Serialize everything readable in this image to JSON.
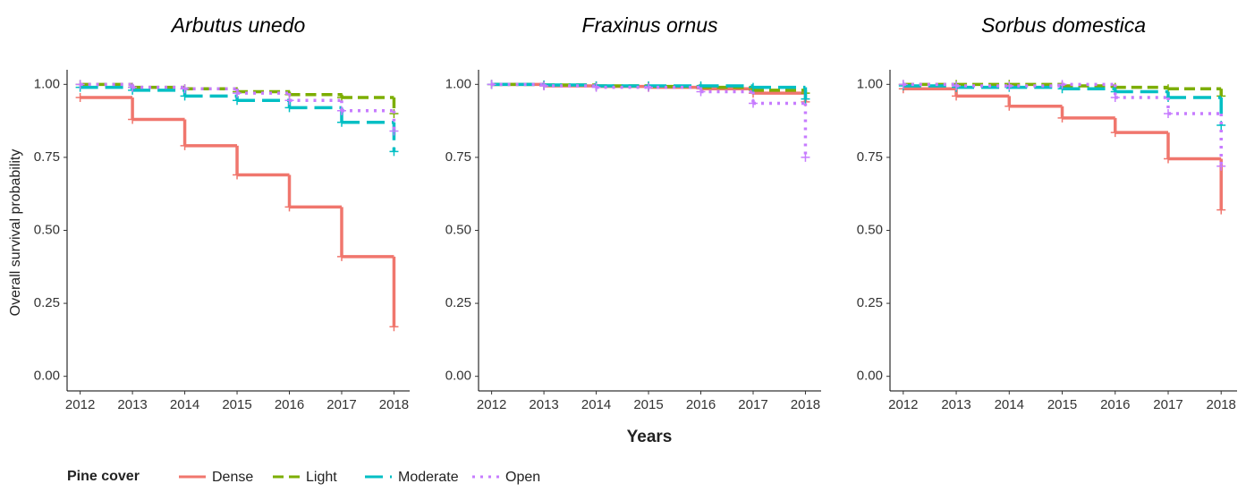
{
  "chart_data": [
    {
      "type": "step",
      "title": "Arbutus unedo",
      "ylabel": "Overall survival probability",
      "legend_title": "Pine cover",
      "x": [
        2012,
        2013,
        2014,
        2015,
        2016,
        2017,
        2018
      ],
      "xlim": [
        2011.75,
        2018.3
      ],
      "xticks": [
        2012,
        2013,
        2014,
        2015,
        2016,
        2017,
        2018
      ],
      "ylim": [
        -0.05,
        1.05
      ],
      "yticks": [
        {
          "value": 0,
          "label": "0.00"
        },
        0.25,
        {
          "value": 0.5,
          "label": "0.50"
        },
        0.75,
        {
          "value": 1,
          "label": "1.00"
        }
      ],
      "series": [
        {
          "name": "Dense",
          "color": "#f0766d",
          "linestyle": "solid",
          "values": [
            0.955,
            0.88,
            0.79,
            0.69,
            0.58,
            0.41,
            0.17
          ]
        },
        {
          "name": "Light",
          "color": "#7cae00",
          "linestyle": "dashed",
          "values": [
            1.0,
            0.99,
            0.985,
            0.975,
            0.965,
            0.955,
            0.9
          ]
        },
        {
          "name": "Moderate",
          "color": "#00bfc4",
          "linestyle": "longdash",
          "values": [
            0.99,
            0.98,
            0.96,
            0.945,
            0.92,
            0.87,
            0.77
          ]
        },
        {
          "name": "Open",
          "color": "#c77cff",
          "linestyle": "dotted",
          "values": [
            1.0,
            0.99,
            0.985,
            0.97,
            0.945,
            0.91,
            0.84
          ]
        }
      ]
    },
    {
      "type": "step",
      "title": "Fraxinus ornus",
      "xlabel": "Years",
      "x": [
        2012,
        2013,
        2014,
        2015,
        2016,
        2017,
        2018
      ],
      "xlim": [
        2011.75,
        2018.3
      ],
      "xticks": [
        2012,
        2013,
        2014,
        2015,
        2016,
        2017,
        2018
      ],
      "ylim": [
        -0.05,
        1.05
      ],
      "yticks": [
        {
          "value": 0,
          "label": "0.00"
        },
        0.25,
        {
          "value": 0.5,
          "label": "0.50"
        },
        0.75,
        {
          "value": 1,
          "label": "1.00"
        }
      ],
      "series": [
        {
          "name": "Dense",
          "color": "#f0766d",
          "linestyle": "solid",
          "values": [
            1.0,
            0.995,
            0.993,
            0.99,
            0.985,
            0.97,
            0.94
          ]
        },
        {
          "name": "Light",
          "color": "#7cae00",
          "linestyle": "dashed",
          "values": [
            1.0,
            0.998,
            0.995,
            0.993,
            0.99,
            0.98,
            0.97
          ]
        },
        {
          "name": "Moderate",
          "color": "#00bfc4",
          "linestyle": "longdash",
          "values": [
            1.0,
            0.998,
            0.995,
            0.995,
            0.995,
            0.99,
            0.95
          ]
        },
        {
          "name": "Open",
          "color": "#c77cff",
          "linestyle": "dotted",
          "values": [
            1.0,
            0.995,
            0.99,
            0.99,
            0.975,
            0.935,
            0.75
          ]
        }
      ]
    },
    {
      "type": "step",
      "title": "Sorbus domestica",
      "x": [
        2012,
        2013,
        2014,
        2015,
        2016,
        2017,
        2018
      ],
      "xlim": [
        2011.75,
        2018.3
      ],
      "xticks": [
        2012,
        2013,
        2014,
        2015,
        2016,
        2017,
        2018
      ],
      "ylim": [
        -0.05,
        1.05
      ],
      "yticks": [
        {
          "value": 0,
          "label": "0.00"
        },
        0.25,
        {
          "value": 0.5,
          "label": "0.50"
        },
        0.75,
        {
          "value": 1,
          "label": "1.00"
        }
      ],
      "series": [
        {
          "name": "Dense",
          "color": "#f0766d",
          "linestyle": "solid",
          "values": [
            0.985,
            0.96,
            0.925,
            0.885,
            0.835,
            0.745,
            0.57
          ]
        },
        {
          "name": "Light",
          "color": "#7cae00",
          "linestyle": "dashed",
          "values": [
            1.0,
            1.0,
            1.0,
            0.995,
            0.99,
            0.985,
            0.96
          ]
        },
        {
          "name": "Moderate",
          "color": "#00bfc4",
          "linestyle": "longdash",
          "values": [
            0.995,
            0.99,
            0.99,
            0.985,
            0.975,
            0.955,
            0.86
          ]
        },
        {
          "name": "Open",
          "color": "#c77cff",
          "linestyle": "dotted",
          "values": [
            1.0,
            0.995,
            0.995,
            1.0,
            0.955,
            0.9,
            0.72
          ]
        }
      ]
    }
  ]
}
